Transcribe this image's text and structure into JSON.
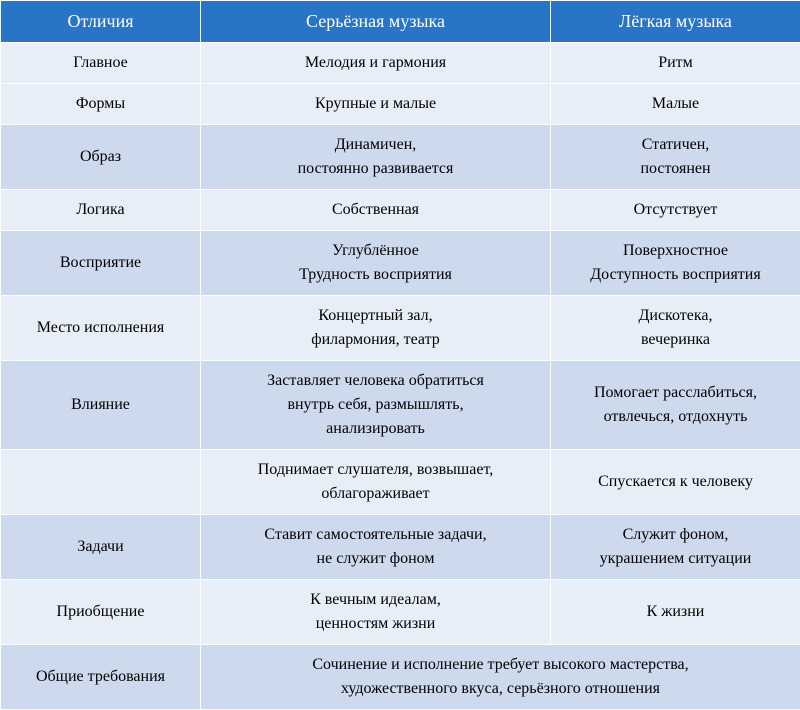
{
  "table": {
    "columns": [
      "Отличия",
      "Серьёзная музыка",
      "Лёгкая музыка"
    ],
    "header_bg": "#2874c7",
    "header_color": "#ffffff",
    "row_light": "#e8eef7",
    "row_dark": "#cdd9ec",
    "rows": [
      {
        "c1": "Главное",
        "c2": "Мелодия и гармония",
        "c3": "Ритм",
        "shade": "light"
      },
      {
        "c1": "Формы",
        "c2": "Крупные и малые",
        "c3": "Малые",
        "shade": "light"
      },
      {
        "c1": "Образ",
        "c2": "Динамичен,\nпостоянно развивается",
        "c3": "Статичен,\nпостоянен",
        "shade": "dark"
      },
      {
        "c1": "Логика",
        "c2": "Собственная",
        "c3": "Отсутствует",
        "shade": "light"
      },
      {
        "c1": "Восприятие",
        "c2": "Углублённое\nТрудность восприятия",
        "c3": "Поверхностное\nДоступность восприятия",
        "shade": "dark"
      },
      {
        "c1": "Место исполнения",
        "c2": "Концертный зал,\nфилармония, театр",
        "c3": "Дискотека,\nвечеринка",
        "shade": "light"
      },
      {
        "c1": "Влияние",
        "c2": "Заставляет человека обратиться\nвнутрь себя, размышлять,\nанализировать",
        "c3": "Помогает расслабиться,\nотвлечься, отдохнуть",
        "shade": "dark"
      },
      {
        "c1": "",
        "c2": "Поднимает слушателя, возвышает,\nоблагораживает",
        "c3": "Спускается к человеку",
        "shade": "light"
      },
      {
        "c1": "Задачи",
        "c2": "Ставит самостоятельные задачи,\nне служит фоном",
        "c3": "Служит фоном,\nукрашением ситуации",
        "shade": "dark"
      },
      {
        "c1": "Приобщение",
        "c2": "К вечным идеалам,\nценностям жизни",
        "c3": "К жизни",
        "shade": "light"
      },
      {
        "c1": "Общие требования",
        "c23": "Сочинение и исполнение требует высокого мастерства,\nхудожественного вкуса, серьёзного отношения",
        "shade": "dark",
        "merge": true
      }
    ]
  }
}
